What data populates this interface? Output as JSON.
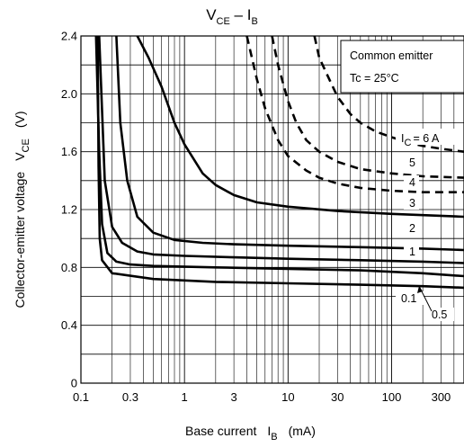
{
  "chart_data": {
    "type": "line",
    "title": "VCE – IB",
    "title_main": "V",
    "title_sub1": "CE",
    "title_mid": " – I",
    "title_sub2": "B",
    "xlabel": "Base current  IB  (mA)",
    "xlabel_main": "Base current",
    "xlabel_sym": "I",
    "xlabel_sub": "B",
    "xlabel_unit": "(mA)",
    "ylabel": "Collector-emitter voltage  VCE  (V)",
    "ylabel_main": "Collector-emitter voltage",
    "ylabel_sym": "V",
    "ylabel_sub": "CE",
    "ylabel_unit": "(V)",
    "x_scale": "log",
    "xlim": [
      0.1,
      500
    ],
    "ylim": [
      0,
      2.4
    ],
    "x_ticks": [
      0.1,
      0.3,
      1,
      3,
      10,
      30,
      100,
      300
    ],
    "x_tick_labels": [
      "0.1",
      "0.3",
      "1",
      "3",
      "10",
      "30",
      "100",
      "300"
    ],
    "y_ticks": [
      0,
      0.4,
      0.8,
      1.2,
      1.6,
      2.0,
      2.4
    ],
    "y_tick_labels": [
      "0",
      "0.4",
      "0.8",
      "1.2",
      "1.6",
      "2.0",
      "2.4"
    ],
    "grid": true,
    "legend_box": [
      "Common emitter",
      "Tc = 25°C"
    ],
    "annotation_ic": "= 6 A",
    "annotation_ic_sym": "I",
    "annotation_ic_sub": "C",
    "series": [
      {
        "name": "0.1",
        "style": "solid",
        "x": [
          0.145,
          0.148,
          0.152,
          0.16,
          0.2,
          0.5,
          2,
          10,
          50,
          200,
          500
        ],
        "y": [
          2.4,
          1.5,
          1.0,
          0.85,
          0.76,
          0.72,
          0.7,
          0.69,
          0.68,
          0.67,
          0.66
        ]
      },
      {
        "name": "0.5",
        "style": "solid",
        "x": [
          0.14,
          0.15,
          0.16,
          0.18,
          0.22,
          0.3,
          0.5,
          2,
          10,
          50,
          200,
          500
        ],
        "y": [
          2.4,
          1.6,
          1.1,
          0.9,
          0.84,
          0.82,
          0.81,
          0.8,
          0.79,
          0.78,
          0.76,
          0.74
        ]
      },
      {
        "name": "1",
        "style": "solid",
        "x": [
          0.15,
          0.17,
          0.2,
          0.25,
          0.35,
          0.5,
          1,
          3,
          10,
          50,
          200,
          500
        ],
        "y": [
          2.4,
          1.4,
          1.08,
          0.97,
          0.91,
          0.89,
          0.88,
          0.87,
          0.86,
          0.85,
          0.84,
          0.83
        ]
      },
      {
        "name": "2",
        "style": "solid",
        "x": [
          0.22,
          0.24,
          0.28,
          0.35,
          0.5,
          0.8,
          1.5,
          3,
          10,
          50,
          200,
          500
        ],
        "y": [
          2.4,
          1.8,
          1.4,
          1.15,
          1.04,
          0.99,
          0.97,
          0.96,
          0.95,
          0.94,
          0.93,
          0.92
        ]
      },
      {
        "name": "3",
        "style": "solid",
        "x": [
          0.35,
          0.45,
          0.6,
          0.8,
          1,
          1.5,
          2,
          3,
          5,
          10,
          30,
          100,
          500
        ],
        "y": [
          2.4,
          2.25,
          2.05,
          1.8,
          1.65,
          1.45,
          1.37,
          1.3,
          1.25,
          1.22,
          1.19,
          1.17,
          1.15
        ]
      },
      {
        "name": "4",
        "style": "dashed",
        "x": [
          4,
          5,
          6,
          8,
          10,
          15,
          20,
          30,
          50,
          100,
          200,
          500
        ],
        "y": [
          2.4,
          2.1,
          1.9,
          1.68,
          1.57,
          1.47,
          1.42,
          1.38,
          1.35,
          1.33,
          1.32,
          1.32
        ]
      },
      {
        "name": "5",
        "style": "dashed",
        "x": [
          7,
          8,
          10,
          12,
          15,
          20,
          30,
          50,
          100,
          200,
          500
        ],
        "y": [
          2.4,
          2.2,
          1.95,
          1.8,
          1.68,
          1.6,
          1.53,
          1.48,
          1.45,
          1.43,
          1.42
        ]
      },
      {
        "name": "6",
        "style": "dashed",
        "x": [
          18,
          20,
          25,
          30,
          40,
          50,
          70,
          100,
          150,
          200,
          300,
          500
        ],
        "y": [
          2.4,
          2.25,
          2.1,
          1.98,
          1.86,
          1.8,
          1.74,
          1.7,
          1.66,
          1.64,
          1.62,
          1.6
        ]
      }
    ],
    "curve_labels": [
      "5",
      "4",
      "3",
      "2",
      "1",
      "0.1",
      "0.5"
    ]
  }
}
